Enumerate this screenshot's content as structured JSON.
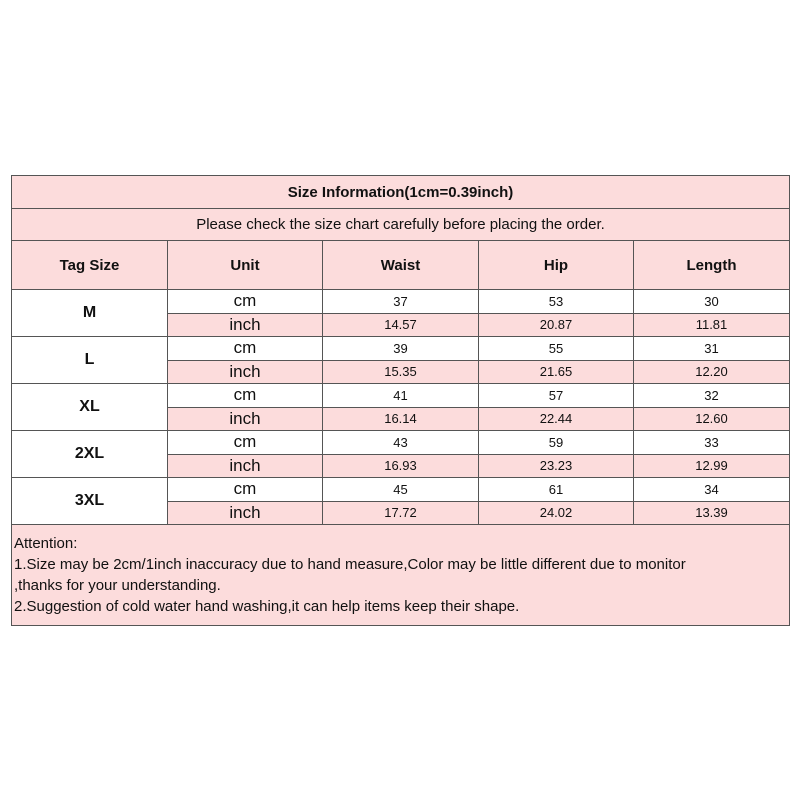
{
  "title": "Size Information(1cm=0.39inch)",
  "subtitle": "Please check the size chart carefully before placing the order.",
  "headers": [
    "Tag Size",
    "Unit",
    "Waist",
    "Hip",
    "Length"
  ],
  "rows": [
    {
      "size": "M",
      "cm": {
        "unit": "cm",
        "waist": "37",
        "hip": "53",
        "length": "30"
      },
      "inch": {
        "unit": "inch",
        "waist": "14.57",
        "hip": "20.87",
        "length": "11.81"
      }
    },
    {
      "size": "L",
      "cm": {
        "unit": "cm",
        "waist": "39",
        "hip": "55",
        "length": "31"
      },
      "inch": {
        "unit": "inch",
        "waist": "15.35",
        "hip": "21.65",
        "length": "12.20"
      }
    },
    {
      "size": "XL",
      "cm": {
        "unit": "cm",
        "waist": "41",
        "hip": "57",
        "length": "32"
      },
      "inch": {
        "unit": "inch",
        "waist": "16.14",
        "hip": "22.44",
        "length": "12.60"
      }
    },
    {
      "size": "2XL",
      "cm": {
        "unit": "cm",
        "waist": "43",
        "hip": "59",
        "length": "33"
      },
      "inch": {
        "unit": "inch",
        "waist": "16.93",
        "hip": "23.23",
        "length": "12.99"
      }
    },
    {
      "size": "3XL",
      "cm": {
        "unit": "cm",
        "waist": "45",
        "hip": "61",
        "length": "34"
      },
      "inch": {
        "unit": "inch",
        "waist": "17.72",
        "hip": "24.02",
        "length": "13.39"
      }
    }
  ],
  "attention": [
    "Attention:",
    "1.Size may be 2cm/1inch inaccuracy due to hand measure,Color may be little different due to monitor",
    ",thanks for your understanding.",
    "2.Suggestion of cold water hand washing,it can help items keep their shape."
  ],
  "colors": {
    "pink": "#fcdcdc",
    "border": "#555555"
  }
}
